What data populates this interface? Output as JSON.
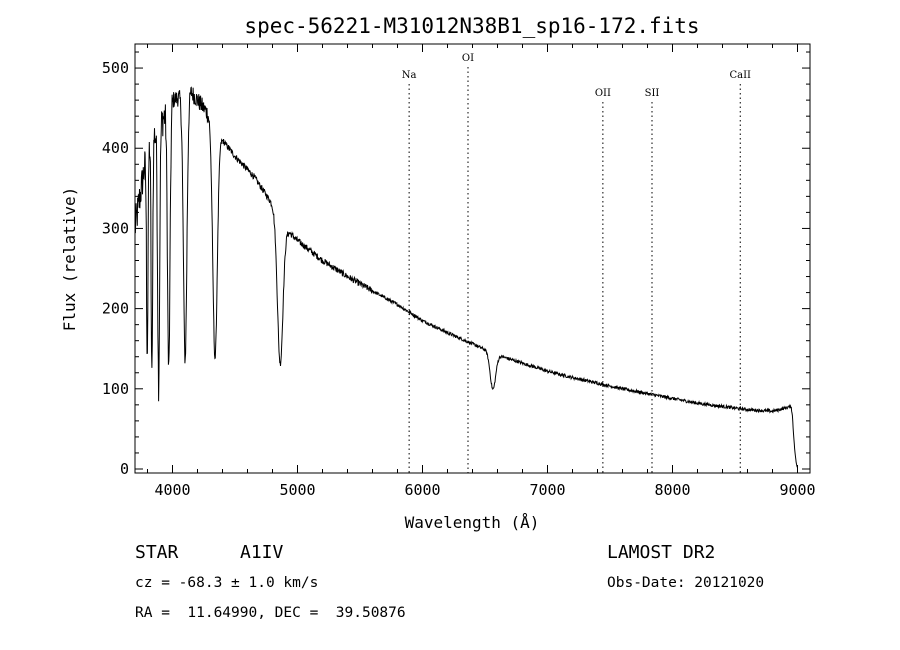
{
  "chart_data": {
    "type": "line",
    "title": "spec-56221-M31012N38B1_sp16-172.fits",
    "xlabel": "Wavelength (Å)",
    "ylabel": "Flux (relative)",
    "xlim": [
      3700,
      9100
    ],
    "ylim": [
      -5,
      530
    ],
    "x_ticks": [
      4000,
      5000,
      6000,
      7000,
      8000,
      9000
    ],
    "y_ticks": [
      0,
      100,
      200,
      300,
      400,
      500
    ],
    "grid": false,
    "continuum": {
      "x": [
        3700,
        3800,
        3900,
        4000,
        4150,
        4300,
        4400,
        4500,
        4650,
        4800,
        4900,
        5000,
        5200,
        5400,
        5600,
        5800,
        6000,
        6200,
        6400,
        6600,
        6800,
        7000,
        7200,
        7400,
        7600,
        7800,
        8000,
        8200,
        8400,
        8600,
        8800,
        8950,
        9000
      ],
      "y": [
        300,
        400,
        430,
        460,
        470,
        440,
        410,
        390,
        365,
        330,
        300,
        285,
        260,
        240,
        222,
        205,
        185,
        170,
        156,
        142,
        132,
        122,
        114,
        107,
        100,
        94,
        88,
        82,
        78,
        74,
        72,
        78,
        10
      ]
    },
    "absorption_lines": [
      {
        "center": 3798,
        "depth": 250,
        "width": 6
      },
      {
        "center": 3835,
        "depth": 300,
        "width": 6
      },
      {
        "center": 3889,
        "depth": 320,
        "width": 8
      },
      {
        "center": 3970,
        "depth": 330,
        "width": 10
      },
      {
        "center": 4101,
        "depth": 330,
        "width": 14
      },
      {
        "center": 4340,
        "depth": 290,
        "width": 18
      },
      {
        "center": 4861,
        "depth": 180,
        "width": 22
      },
      {
        "center": 6563,
        "depth": 45,
        "width": 22
      }
    ],
    "reference_lines": [
      {
        "label": "Na",
        "wavelength": 5893
      },
      {
        "label": "OI",
        "wavelength": 6364
      },
      {
        "label": "OII",
        "wavelength": 7443
      },
      {
        "label": "SII",
        "wavelength": 7836
      },
      {
        "label": "CaII",
        "wavelength": 8542
      }
    ]
  },
  "info": {
    "object_class": "STAR",
    "subclass": "A1IV",
    "velocity": "cz = -68.3 ± 1.0 km/s",
    "coordinates": "RA =  11.64990, DEC =  39.50876",
    "survey": "LAMOST DR2",
    "obs_date": "Obs-Date: 20121020"
  }
}
